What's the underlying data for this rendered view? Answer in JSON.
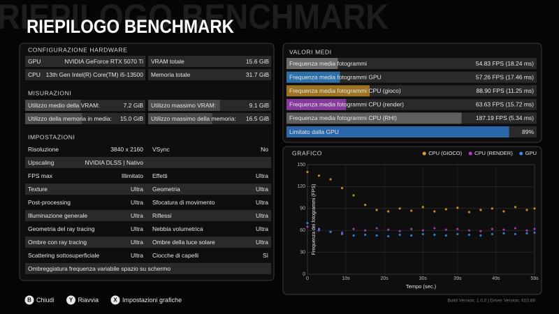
{
  "header": {
    "title": "RIEPILOGO BENCHMARK"
  },
  "hardware": {
    "title": "CONFIGURAZIONE HARDWARE",
    "gpu_label": "GPU",
    "gpu": "NVIDIA GeForce RTX 5070 Ti",
    "vram_label": "VRAM totale",
    "vram": {
      "value": 15.6,
      "label": "15.6 GiB"
    },
    "cpu_label": "CPU",
    "cpu": "13th Gen Intel(R) Core(TM) i5-13500",
    "ram_label": "Memoria totale",
    "ram": {
      "value": 31.7,
      "label": "31.7 GiB"
    }
  },
  "measurements": {
    "title": "MISURAZIONI",
    "items": [
      {
        "label": "Utilizzo medio della VRAM:",
        "value": {
          "value": 7.2,
          "label": "7.2 GiB"
        }
      },
      {
        "label": "Utilizzo massimo VRAM:",
        "value": {
          "value": 9.1,
          "label": "9.1 GiB"
        }
      },
      {
        "label": "Utilizzo della memoria in media:",
        "value": {
          "value": 15.0,
          "label": "15.0 GiB"
        }
      },
      {
        "label": "Utilizzo massimo della memoria:",
        "value": {
          "value": 16.5,
          "label": "16.5 GiB"
        }
      }
    ]
  },
  "settings": {
    "title": "IMPOSTAZIONI",
    "rows": [
      {
        "left": [
          "Risoluzione",
          "3840 x 2160"
        ],
        "right": [
          "VSync",
          "No"
        ]
      },
      {
        "left": [
          "Upscaling",
          "NVIDIA DLSS | Nativo"
        ]
      },
      {
        "left": [
          "FPS max",
          "Illimitato"
        ],
        "right": [
          "Effetti",
          "Ultra"
        ]
      },
      {
        "left": [
          "Texture",
          "Ultra"
        ],
        "right": [
          "Geometria",
          "Ultra"
        ]
      },
      {
        "left": [
          "Post-processing",
          "Ultra"
        ],
        "right": [
          "Sfocatura di movimento",
          "Ultra"
        ]
      },
      {
        "left": [
          "Illuminazione generale",
          "Ultra"
        ],
        "right": [
          "Riflessi",
          "Ultra"
        ]
      },
      {
        "left": [
          "Geometria del ray tracing",
          "Ultra"
        ],
        "right": [
          "Nebbia volumetrica",
          "Ultra"
        ]
      },
      {
        "left": [
          "Ombre con ray tracing",
          "Ultra"
        ],
        "right": [
          "Ombre della luce solare",
          "Ultra"
        ]
      },
      {
        "left": [
          "Scattering sottosuperficiale",
          "Ultra"
        ],
        "right": [
          "Ciocche di capelli",
          "Sì"
        ]
      },
      {
        "left": [
          "Ombreggiatura frequenza variabile spazio su schermo"
        ]
      }
    ]
  },
  "averages": {
    "title": "VALORI MEDI",
    "rows": [
      {
        "label": "Frequenza media fotogrammi",
        "value": 54.83,
        "value_label": "54.83 FPS (18.24 ms)",
        "color": "#6b6b6b"
      },
      {
        "label": "Frequenza media fotogrammi GPU",
        "value": 57.26,
        "value_label": "57.26 FPS (17.46 ms)",
        "color": "#2f6fa8"
      },
      {
        "label": "Frequenza media fotogrammi CPU (gioco)",
        "value": 88.9,
        "value_label": "88.90 FPS (11.25 ms)",
        "color": "#9c7422"
      },
      {
        "label": "Frequenza media fotogrammi CPU (render)",
        "value": 63.63,
        "value_label": "63.63 FPS (15.72 ms)",
        "color": "#863a9c"
      },
      {
        "label": "Frequenza media fotogrammi CPU (RHI)",
        "value": 187.19,
        "value_label": "187.19 FPS (5.34 ms)",
        "color": "#5e5e5e"
      },
      {
        "label": "Limitato dalla GPU",
        "value": 89,
        "value_label": "89%",
        "color": "#2a66a8"
      }
    ]
  },
  "graph": {
    "type": "scatter",
    "title": "GRAFICO",
    "x_label": "Tempo (sec.)",
    "y_label": "Frequenza dei fotogrammi (FPS)",
    "xlim": [
      0,
      59
    ],
    "ylim": [
      0,
      150
    ],
    "grid": true,
    "xticks": [
      0,
      {
        "value": 10,
        "label": "10s"
      },
      {
        "value": 20,
        "label": "20s"
      },
      {
        "value": 30,
        "label": "30s"
      },
      {
        "value": 39,
        "label": "39s"
      },
      {
        "value": 49,
        "label": "49s"
      },
      {
        "value": 59,
        "label": "59s"
      }
    ],
    "yticks": [
      0,
      30,
      60,
      90,
      120,
      150
    ],
    "x": [
      0,
      3,
      6,
      9,
      12,
      15,
      18,
      21,
      24,
      27,
      30,
      33,
      36,
      39,
      42,
      45,
      48,
      51,
      54,
      57,
      59
    ],
    "series": [
      {
        "name": "CPU (GIOCO)",
        "color": "#e0a030",
        "values": [
          140,
          135,
          130,
          118,
          108,
          95,
          88,
          86,
          90,
          87,
          92,
          86,
          89,
          91,
          85,
          88,
          90,
          86,
          92,
          88,
          90
        ]
      },
      {
        "name": "CPU (RENDER)",
        "color": "#b040c8",
        "values": [
          65,
          60,
          58,
          57,
          62,
          60,
          63,
          61,
          59,
          62,
          60,
          63,
          61,
          62,
          60,
          59,
          62,
          61,
          63,
          60,
          62
        ]
      },
      {
        "name": "GPU",
        "color": "#3a8ee0",
        "values": [
          70,
          62,
          58,
          55,
          53,
          54,
          53,
          52,
          54,
          53,
          55,
          54,
          53,
          55,
          54,
          53,
          55,
          56,
          55,
          56,
          57
        ]
      }
    ]
  },
  "footer": {
    "buttons": [
      {
        "key": "B",
        "label": "Chiudi"
      },
      {
        "key": "Y",
        "label": "Riavvia"
      },
      {
        "key": "X",
        "label": "Impostazioni grafiche"
      }
    ],
    "build": "Build Version: 1.0.0 | Driver Version: 610.88"
  }
}
